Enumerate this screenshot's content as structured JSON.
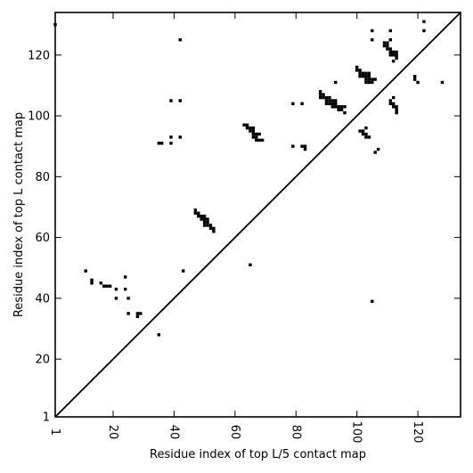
{
  "chart_data": {
    "type": "scatter",
    "title": "",
    "xlabel": "Residue index of top L/5 contact map",
    "ylabel": "Residue index of top L contact map",
    "xlim": [
      1,
      134
    ],
    "ylim": [
      1,
      134
    ],
    "xticks": [
      1,
      20,
      40,
      60,
      80,
      100,
      120
    ],
    "yticks": [
      1,
      20,
      40,
      60,
      80,
      100,
      120
    ],
    "grid": false,
    "diagonal_line": true,
    "marker_color": "#000000",
    "series": [
      {
        "points": [
          [
            1,
            130
          ],
          [
            42,
            125
          ],
          [
            11,
            49
          ],
          [
            13,
            46
          ],
          [
            13,
            45
          ],
          [
            16,
            45
          ],
          [
            17,
            44
          ],
          [
            18,
            44
          ],
          [
            19,
            44
          ],
          [
            21,
            43
          ],
          [
            21,
            40
          ],
          [
            24,
            47
          ],
          [
            24,
            43
          ],
          [
            25,
            40
          ],
          [
            25,
            35
          ],
          [
            28,
            35
          ],
          [
            28,
            34
          ],
          [
            29,
            35
          ],
          [
            35,
            28
          ],
          [
            35,
            91
          ],
          [
            36,
            91
          ],
          [
            39,
            91
          ],
          [
            39,
            93
          ],
          [
            39,
            105
          ],
          [
            42,
            105
          ],
          [
            42,
            93
          ],
          [
            43,
            49
          ],
          [
            47,
            69
          ],
          [
            47,
            68
          ],
          [
            48,
            68
          ],
          [
            48,
            67
          ],
          [
            49,
            67
          ],
          [
            49,
            66
          ],
          [
            50,
            67
          ],
          [
            50,
            66
          ],
          [
            50,
            65
          ],
          [
            50,
            64
          ],
          [
            51,
            66
          ],
          [
            51,
            65
          ],
          [
            51,
            64
          ],
          [
            52,
            64
          ],
          [
            52,
            63
          ],
          [
            53,
            63
          ],
          [
            53,
            62
          ],
          [
            63,
            97
          ],
          [
            64,
            97
          ],
          [
            64,
            96
          ],
          [
            65,
            96
          ],
          [
            65,
            95
          ],
          [
            66,
            96
          ],
          [
            66,
            95
          ],
          [
            66,
            94
          ],
          [
            66,
            93
          ],
          [
            67,
            94
          ],
          [
            67,
            93
          ],
          [
            67,
            92
          ],
          [
            68,
            94
          ],
          [
            68,
            92
          ],
          [
            69,
            92
          ],
          [
            65,
            51
          ],
          [
            79,
            104
          ],
          [
            79,
            90
          ],
          [
            82,
            104
          ],
          [
            82,
            90
          ],
          [
            83,
            90
          ],
          [
            83,
            89
          ],
          [
            88,
            108
          ],
          [
            88,
            107
          ],
          [
            88,
            106
          ],
          [
            89,
            107
          ],
          [
            89,
            106
          ],
          [
            90,
            106
          ],
          [
            90,
            105
          ],
          [
            90,
            104
          ],
          [
            91,
            106
          ],
          [
            91,
            105
          ],
          [
            91,
            104
          ],
          [
            92,
            105
          ],
          [
            92,
            104
          ],
          [
            92,
            103
          ],
          [
            93,
            105
          ],
          [
            93,
            104
          ],
          [
            93,
            103
          ],
          [
            93,
            111
          ],
          [
            94,
            103
          ],
          [
            94,
            102
          ],
          [
            95,
            103
          ],
          [
            95,
            102
          ],
          [
            96,
            103
          ],
          [
            96,
            101
          ],
          [
            100,
            116
          ],
          [
            100,
            115
          ],
          [
            101,
            115
          ],
          [
            101,
            114
          ],
          [
            101,
            113
          ],
          [
            102,
            114
          ],
          [
            102,
            113
          ],
          [
            103,
            114
          ],
          [
            103,
            113
          ],
          [
            103,
            112
          ],
          [
            103,
            111
          ],
          [
            104,
            114
          ],
          [
            104,
            113
          ],
          [
            104,
            112
          ],
          [
            104,
            111
          ],
          [
            105,
            112
          ],
          [
            105,
            111
          ],
          [
            106,
            112
          ],
          [
            101,
            95
          ],
          [
            102,
            95
          ],
          [
            102,
            94
          ],
          [
            103,
            96
          ],
          [
            103,
            94
          ],
          [
            103,
            93
          ],
          [
            104,
            93
          ],
          [
            106,
            88
          ],
          [
            107,
            89
          ],
          [
            105,
            39
          ],
          [
            105,
            128
          ],
          [
            105,
            125
          ],
          [
            109,
            124
          ],
          [
            109,
            123
          ],
          [
            110,
            124
          ],
          [
            110,
            123
          ],
          [
            110,
            122
          ],
          [
            111,
            128
          ],
          [
            111,
            125
          ],
          [
            111,
            122
          ],
          [
            111,
            121
          ],
          [
            111,
            120
          ],
          [
            112,
            121
          ],
          [
            112,
            120
          ],
          [
            112,
            118
          ],
          [
            113,
            121
          ],
          [
            113,
            120
          ],
          [
            113,
            119
          ],
          [
            111,
            105
          ],
          [
            111,
            104
          ],
          [
            112,
            106
          ],
          [
            112,
            104
          ],
          [
            112,
            103
          ],
          [
            113,
            103
          ],
          [
            113,
            102
          ],
          [
            113,
            101
          ],
          [
            119,
            113
          ],
          [
            119,
            112
          ],
          [
            120,
            111
          ],
          [
            122,
            131
          ],
          [
            122,
            128
          ],
          [
            128,
            111
          ]
        ]
      }
    ]
  }
}
